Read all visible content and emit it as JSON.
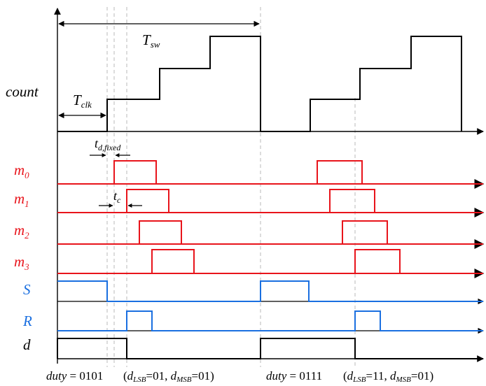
{
  "colors": {
    "comparator": "#e8141b",
    "latch": "#1a6fe0",
    "counter": "#000000",
    "guide": "#b8b8b8"
  },
  "labels": {
    "count": "count",
    "T": "T",
    "sw": "sw",
    "clk": "clk",
    "t": "t",
    "d_fixed": "d,fixed",
    "c": "c",
    "m": "m",
    "m0_sub": "0",
    "m1_sub": "1",
    "m2_sub": "2",
    "m3_sub": "3",
    "S": "S",
    "R": "R",
    "d": "d"
  },
  "footer": {
    "duty_word": "duty",
    "eq": " = ",
    "duty1": "0101",
    "duty2": "0111",
    "open": "(",
    "d": "d",
    "lsb": "LSB",
    "msb": "MSB",
    "sep": ", ",
    "close": ")",
    "lsb1": "=01",
    "msb1": "=01",
    "lsb2": "=11",
    "msb2": "=01"
  },
  "waveforms": {
    "count_levels": [
      0,
      1,
      2,
      3,
      0,
      1,
      2,
      3
    ],
    "m0_high": [
      [
        163,
        223
      ],
      [
        453,
        517
      ]
    ],
    "m1_high": [
      [
        181,
        241
      ],
      [
        471,
        535
      ]
    ],
    "m2_high": [
      [
        199,
        259
      ],
      [
        489,
        553
      ]
    ],
    "m3_high": [
      [
        217,
        277
      ],
      [
        507,
        571
      ]
    ],
    "S_high": [
      [
        82,
        153
      ],
      [
        372,
        441
      ]
    ],
    "R_high": [
      [
        181,
        217
      ],
      [
        507,
        543
      ]
    ],
    "d_high": [
      [
        82,
        181
      ],
      [
        372,
        507
      ]
    ]
  }
}
